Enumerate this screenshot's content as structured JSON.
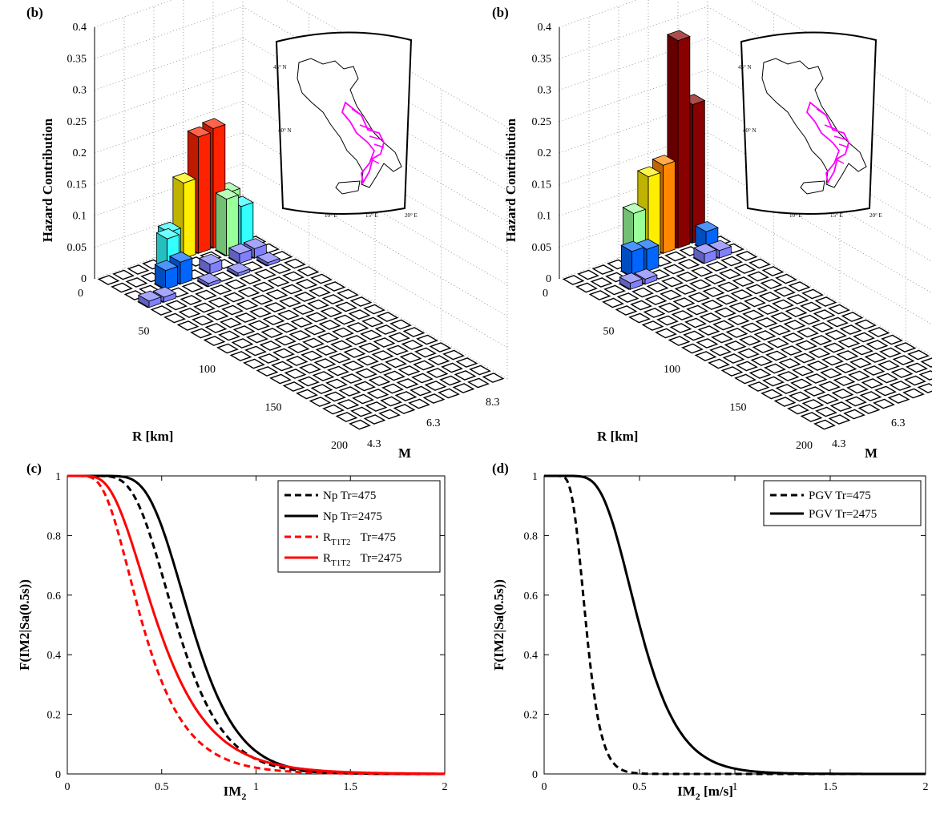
{
  "panels": {
    "a_label": "(b)",
    "b_label": "(b)",
    "c_label": "(c)",
    "d_label": "(d)"
  },
  "chart_data": [
    {
      "type": "bar3d",
      "zlabel": "Hazard Contribution",
      "xlabel": "R [km]",
      "ylabel": "M",
      "zlim": [
        0,
        0.4
      ],
      "zticks": [
        "0",
        "0.05",
        "0.1",
        "0.15",
        "0.2",
        "0.25",
        "0.3",
        "0.35",
        "0.4"
      ],
      "rticks": [
        "0",
        "50",
        "100",
        "150",
        "200"
      ],
      "mticks": [
        "4.3",
        "6.3",
        "8.3"
      ],
      "bars": [
        {
          "r": 5,
          "m": 6.6,
          "z": 0.05
        },
        {
          "r": 5,
          "m": 7.1,
          "z": 0.12
        },
        {
          "r": 5,
          "m": 7.6,
          "z": 0.185
        },
        {
          "r": 5,
          "m": 8.1,
          "z": 0.19
        },
        {
          "r": 5,
          "m": 8.6,
          "z": 0.08
        },
        {
          "r": 15,
          "m": 6.1,
          "z": 0.06
        },
        {
          "r": 15,
          "m": 8.1,
          "z": 0.09
        },
        {
          "r": 15,
          "m": 8.6,
          "z": 0.07
        },
        {
          "r": 25,
          "m": 5.6,
          "z": 0.03
        },
        {
          "r": 25,
          "m": 6.1,
          "z": 0.035
        },
        {
          "r": 25,
          "m": 7.1,
          "z": 0.015
        },
        {
          "r": 25,
          "m": 8.1,
          "z": 0.015
        },
        {
          "r": 25,
          "m": 8.6,
          "z": 0.015
        },
        {
          "r": 35,
          "m": 4.6,
          "z": 0.01
        },
        {
          "r": 35,
          "m": 5.1,
          "z": 0.008
        },
        {
          "r": 35,
          "m": 6.6,
          "z": 0.005
        },
        {
          "r": 35,
          "m": 7.6,
          "z": 0.005
        },
        {
          "r": 35,
          "m": 8.6,
          "z": 0.005
        }
      ],
      "inset_map": {
        "lat_labels": [
          "45° N",
          "40° N"
        ],
        "lon_labels": [
          "10° E",
          "15° E",
          "20° E"
        ]
      }
    },
    {
      "type": "bar3d",
      "zlabel": "Hazard Contribution",
      "xlabel": "R [km]",
      "ylabel": "M",
      "zlim": [
        0,
        0.4
      ],
      "zticks": [
        "0",
        "0.05",
        "0.1",
        "0.15",
        "0.2",
        "0.25",
        "0.3",
        "0.35",
        "0.4"
      ],
      "rticks": [
        "0",
        "50",
        "100",
        "150",
        "200"
      ],
      "mticks": [
        "4.3",
        "6.3",
        "8.3"
      ],
      "bars": [
        {
          "r": 5,
          "m": 6.6,
          "z": 0.08
        },
        {
          "r": 5,
          "m": 7.1,
          "z": 0.13
        },
        {
          "r": 5,
          "m": 7.6,
          "z": 0.14
        },
        {
          "r": 5,
          "m": 8.1,
          "z": 0.33
        },
        {
          "r": 5,
          "m": 8.6,
          "z": 0.22
        },
        {
          "r": 15,
          "m": 6.1,
          "z": 0.04
        },
        {
          "r": 15,
          "m": 6.6,
          "z": 0.035
        },
        {
          "r": 15,
          "m": 8.6,
          "z": 0.03
        },
        {
          "r": 25,
          "m": 5.6,
          "z": 0.01
        },
        {
          "r": 25,
          "m": 6.1,
          "z": 0.008
        },
        {
          "r": 25,
          "m": 8.1,
          "z": 0.015
        },
        {
          "r": 25,
          "m": 8.6,
          "z": 0.012
        }
      ],
      "inset_map": {
        "lat_labels": [
          "45° N",
          "40° N"
        ],
        "lon_labels": [
          "10° E",
          "15° E",
          "20° E"
        ]
      }
    },
    {
      "type": "line",
      "xlabel": "IM",
      "xlabel_sub": "2",
      "ylabel": "F(IM2|Sa(0.5s))",
      "xlim": [
        0,
        2
      ],
      "ylim": [
        0,
        1
      ],
      "xticks": [
        "0",
        "0.5",
        "1",
        "1.5",
        "2"
      ],
      "yticks": [
        "0",
        "0.2",
        "0.4",
        "0.6",
        "0.8",
        "1"
      ],
      "legend_position": "top-right",
      "series": [
        {
          "name": "Np Tr=475",
          "color": "#000000",
          "dash": true,
          "mu": 0.58,
          "sigma": 0.33
        },
        {
          "name": "Np Tr=2475",
          "color": "#000000",
          "dash": false,
          "mu": 0.66,
          "sigma": 0.29
        },
        {
          "name": "R",
          "sub": "T1T2",
          "suffix": "Tr=475",
          "color": "#ff0000",
          "dash": true,
          "mu": 0.4,
          "sigma": 0.45
        },
        {
          "name": "R",
          "sub": "T1T2",
          "suffix": "Tr=2475",
          "color": "#ff0000",
          "dash": false,
          "mu": 0.48,
          "sigma": 0.45
        }
      ]
    },
    {
      "type": "line",
      "xlabel": "IM",
      "xlabel_sub": "2",
      "xlabel_suffix": " [m/s]",
      "ylabel": "F(IM2|Sa(0.5s))",
      "xlim": [
        0,
        2
      ],
      "ylim": [
        0,
        1
      ],
      "xticks": [
        "0",
        "0.5",
        "1",
        "1.5",
        "2"
      ],
      "yticks": [
        "0",
        "0.2",
        "0.4",
        "0.6",
        "0.8",
        "1"
      ],
      "legend_position": "top-right",
      "series": [
        {
          "name": "PGV Tr=475",
          "color": "#000000",
          "dash": true,
          "mu": 0.22,
          "sigma": 0.28
        },
        {
          "name": "PGV Tr=2475",
          "color": "#000000",
          "dash": false,
          "mu": 0.5,
          "sigma": 0.33
        }
      ]
    }
  ]
}
